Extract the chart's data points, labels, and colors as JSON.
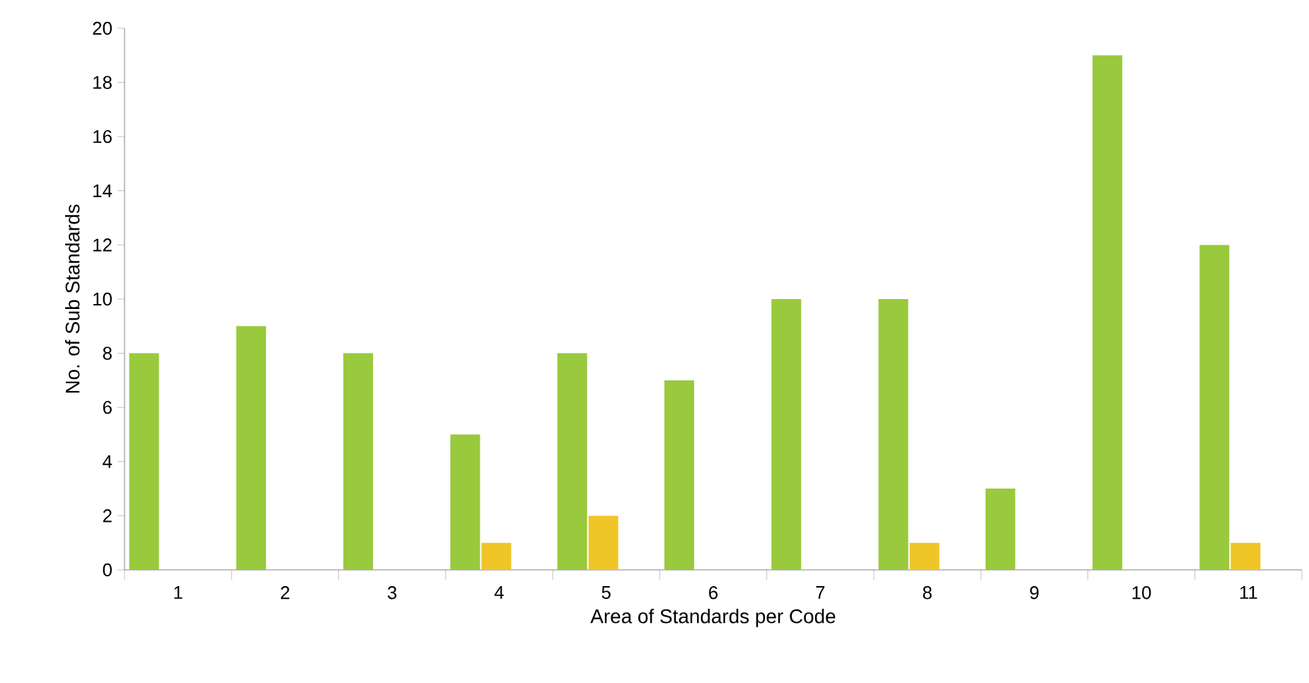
{
  "chart_data": {
    "type": "bar",
    "xlabel": "Area of Standards per Code",
    "ylabel": "No. of Sub Standards",
    "categories": [
      "1",
      "2",
      "3",
      "4",
      "5",
      "6",
      "7",
      "8",
      "9",
      "10",
      "11"
    ],
    "series": [
      {
        "color": "#99c93c",
        "values": [
          8,
          9,
          8,
          5,
          8,
          7,
          10,
          10,
          3,
          19,
          12
        ]
      },
      {
        "color": "#f0c528",
        "values": [
          0,
          0,
          0,
          1,
          2,
          0,
          0,
          1,
          0,
          0,
          1
        ]
      }
    ],
    "ylim": [
      0,
      20
    ],
    "yticks": [
      0,
      2,
      4,
      6,
      8,
      10,
      12,
      14,
      16,
      18,
      20
    ]
  }
}
